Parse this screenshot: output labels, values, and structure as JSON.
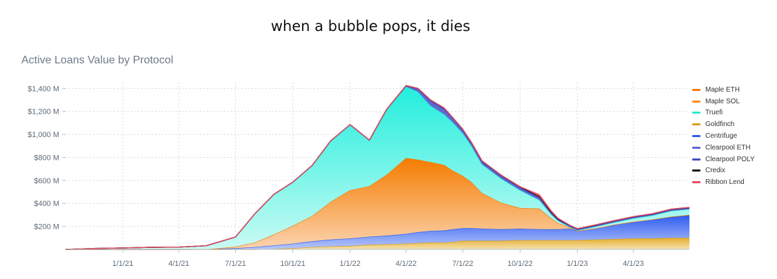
{
  "caption": "when a bubble pops, it dies",
  "chart_data": {
    "type": "area",
    "stacked": true,
    "title": "Active Loans Value by Protocol",
    "xlabel": "",
    "ylabel": "",
    "x_ticks": [
      "1/1/21",
      "4/1/21",
      "7/1/21",
      "10/1/21",
      "1/1/22",
      "4/1/22",
      "7/1/22",
      "10/1/22",
      "1/1/23",
      "4/1/23"
    ],
    "y_ticks": [
      "$200 M",
      "$400 M",
      "$600 M",
      "$800 M",
      "$1,000 M",
      "$1,200 M",
      "$1,400 M"
    ],
    "y_tick_values": [
      200,
      400,
      600,
      800,
      1000,
      1200,
      1400
    ],
    "ylim": [
      0,
      1450
    ],
    "xlim": [
      "2020-10-01",
      "2023-06-30"
    ],
    "grid": true,
    "legend_position": "right",
    "x": [
      "2020-10-01",
      "2020-11-15",
      "2021-01-01",
      "2021-02-15",
      "2021-04-01",
      "2021-05-15",
      "2021-07-01",
      "2021-08-01",
      "2021-09-01",
      "2021-10-01",
      "2021-11-01",
      "2021-12-01",
      "2022-01-01",
      "2022-02-01",
      "2022-03-01",
      "2022-04-01",
      "2022-04-20",
      "2022-05-10",
      "2022-06-01",
      "2022-06-15",
      "2022-07-01",
      "2022-07-15",
      "2022-08-01",
      "2022-09-01",
      "2022-10-01",
      "2022-11-01",
      "2022-11-20",
      "2022-12-01",
      "2022-12-20",
      "2023-01-01",
      "2023-02-01",
      "2023-03-01",
      "2023-04-01",
      "2023-05-01",
      "2023-06-01",
      "2023-06-30"
    ],
    "series": [
      {
        "name": "Goldfinch",
        "color": "#d9a017",
        "values": [
          0,
          0,
          0,
          0,
          0,
          0,
          0,
          0,
          5,
          10,
          20,
          25,
          30,
          40,
          45,
          50,
          55,
          60,
          60,
          65,
          75,
          75,
          75,
          75,
          80,
          80,
          80,
          80,
          80,
          80,
          85,
          90,
          95,
          95,
          100,
          100
        ]
      },
      {
        "name": "Centrifuge",
        "color": "#2f5df0",
        "values": [
          0,
          0,
          0,
          0,
          0,
          2,
          10,
          20,
          30,
          40,
          50,
          60,
          65,
          70,
          75,
          85,
          95,
          100,
          105,
          110,
          110,
          110,
          105,
          100,
          100,
          95,
          95,
          95,
          100,
          80,
          100,
          125,
          145,
          165,
          185,
          200
        ]
      },
      {
        "name": "Maple ETH",
        "color": "#f57c00",
        "values": [
          0,
          0,
          0,
          0,
          0,
          0,
          12,
          40,
          95,
          155,
          220,
          330,
          420,
          440,
          530,
          660,
          630,
          600,
          570,
          510,
          455,
          400,
          310,
          230,
          180,
          180,
          95,
          55,
          10,
          0,
          0,
          0,
          0,
          0,
          0,
          0
        ]
      },
      {
        "name": "Maple SOL",
        "color": "#ff8c1a",
        "values": [
          0,
          0,
          0,
          0,
          0,
          0,
          0,
          0,
          0,
          0,
          0,
          0,
          0,
          0,
          0,
          0,
          0,
          0,
          0,
          0,
          0,
          0,
          0,
          0,
          0,
          0,
          0,
          0,
          0,
          0,
          0,
          0,
          0,
          0,
          0,
          0
        ]
      },
      {
        "name": "Truefi",
        "color": "#2ee6cf",
        "values": [
          0,
          8,
          12,
          18,
          20,
          30,
          85,
          250,
          350,
          380,
          440,
          530,
          570,
          400,
          570,
          620,
          590,
          490,
          440,
          420,
          370,
          315,
          250,
          210,
          155,
          75,
          35,
          20,
          5,
          5,
          15,
          20,
          30,
          35,
          50,
          50
        ]
      },
      {
        "name": "Clearpool ETH",
        "color": "#5e6ad2",
        "values": [
          0,
          0,
          0,
          0,
          0,
          0,
          0,
          0,
          0,
          0,
          0,
          0,
          0,
          0,
          0,
          5,
          20,
          35,
          40,
          30,
          20,
          15,
          15,
          15,
          15,
          15,
          10,
          5,
          5,
          5,
          5,
          5,
          5,
          5,
          5,
          5
        ]
      },
      {
        "name": "Clearpool POLY",
        "color": "#3f4fc2",
        "values": [
          0,
          0,
          0,
          0,
          0,
          0,
          0,
          0,
          0,
          0,
          0,
          0,
          0,
          0,
          0,
          5,
          10,
          15,
          15,
          10,
          10,
          10,
          10,
          10,
          10,
          10,
          5,
          5,
          5,
          5,
          5,
          5,
          5,
          5,
          5,
          5
        ]
      },
      {
        "name": "Credix",
        "color": "#111111",
        "values": [
          0,
          0,
          0,
          0,
          0,
          0,
          0,
          0,
          0,
          0,
          0,
          0,
          0,
          0,
          0,
          0,
          0,
          0,
          0,
          0,
          5,
          5,
          5,
          5,
          5,
          5,
          5,
          5,
          5,
          5,
          5,
          5,
          5,
          5,
          5,
          5
        ]
      },
      {
        "name": "Ribbon Lend",
        "color": "#e84a5f",
        "values": [
          0,
          0,
          0,
          0,
          0,
          0,
          0,
          0,
          0,
          0,
          0,
          0,
          0,
          0,
          0,
          0,
          0,
          0,
          0,
          0,
          0,
          0,
          0,
          0,
          0,
          15,
          10,
          5,
          0,
          0,
          0,
          0,
          0,
          0,
          0,
          0
        ]
      }
    ],
    "legend": [
      {
        "name": "Maple ETH",
        "color": "#f57c00"
      },
      {
        "name": "Maple SOL",
        "color": "#ff8c1a"
      },
      {
        "name": "Truefi",
        "color": "#2ee6cf"
      },
      {
        "name": "Goldfinch",
        "color": "#d9a017"
      },
      {
        "name": "Centrifuge",
        "color": "#2f5df0"
      },
      {
        "name": "Clearpool ETH",
        "color": "#5e6ad2"
      },
      {
        "name": "Clearpool POLY",
        "color": "#3f4fc2"
      },
      {
        "name": "Credix",
        "color": "#111111"
      },
      {
        "name": "Ribbon Lend",
        "color": "#e84a5f"
      }
    ]
  }
}
